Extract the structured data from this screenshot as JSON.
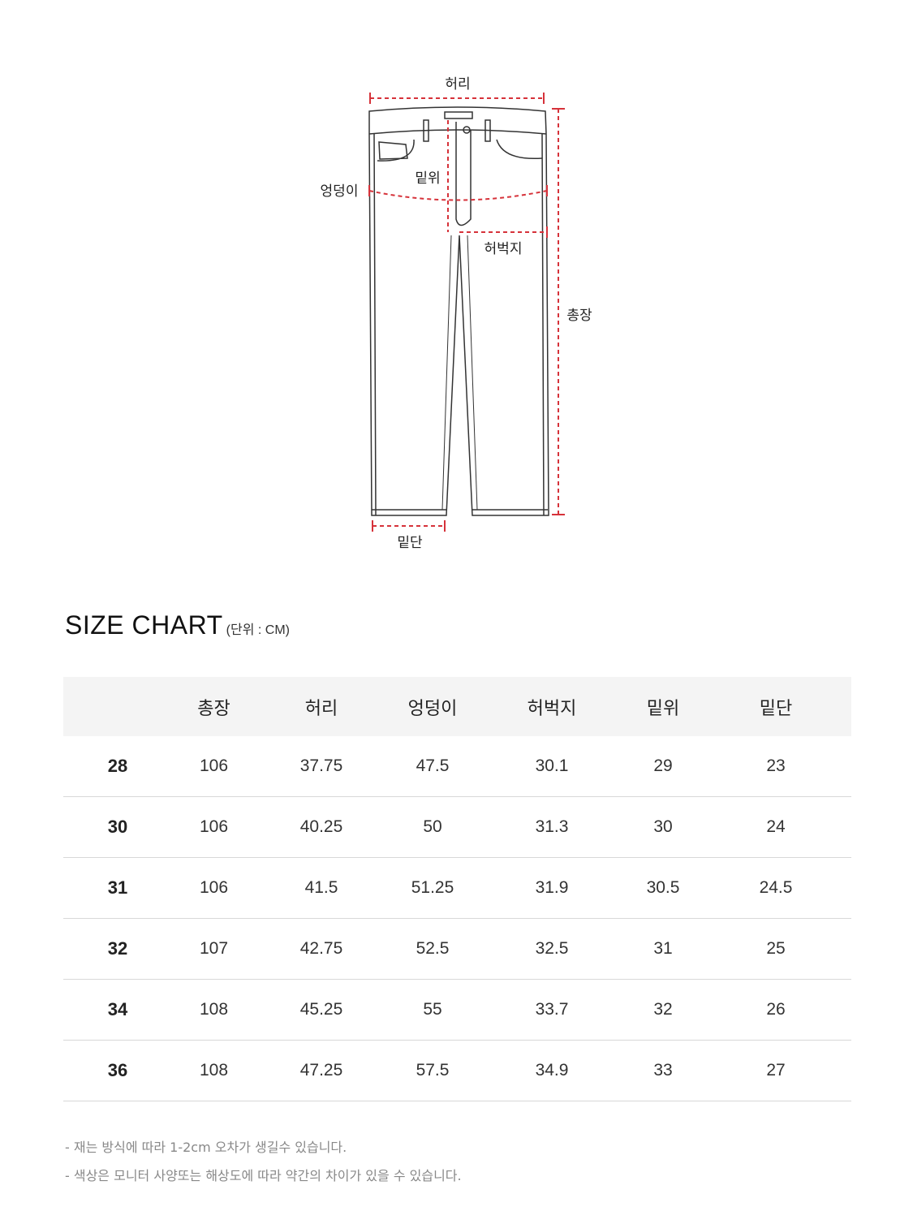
{
  "diagram": {
    "labels": {
      "waist": "허리",
      "hip": "엉덩이",
      "rise": "밑위",
      "thigh": "허벅지",
      "length": "총장",
      "hem": "밑단"
    },
    "line_color": "#d6323a"
  },
  "title": "SIZE CHART",
  "unit": "(단위 : CM)",
  "table": {
    "headers": [
      "",
      "총장",
      "허리",
      "엉덩이",
      "허벅지",
      "밑위",
      "밑단"
    ],
    "rows": [
      [
        "28",
        "106",
        "37.75",
        "47.5",
        "30.1",
        "29",
        "23"
      ],
      [
        "30",
        "106",
        "40.25",
        "50",
        "31.3",
        "30",
        "24"
      ],
      [
        "31",
        "106",
        "41.5",
        "51.25",
        "31.9",
        "30.5",
        "24.5"
      ],
      [
        "32",
        "107",
        "42.75",
        "52.5",
        "32.5",
        "31",
        "25"
      ],
      [
        "34",
        "108",
        "45.25",
        "55",
        "33.7",
        "32",
        "26"
      ],
      [
        "36",
        "108",
        "47.25",
        "57.5",
        "34.9",
        "33",
        "27"
      ]
    ]
  },
  "notes": [
    "- 재는 방식에 따라 1-2cm 오차가 생길수 있습니다.",
    "- 색상은 모니터 사양또는 해상도에 따라 약간의 차이가 있을 수 있습니다."
  ]
}
